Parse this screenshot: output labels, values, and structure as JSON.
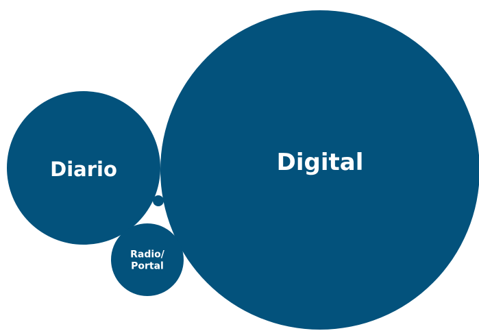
{
  "chart_data": {
    "type": "bubble",
    "color": "#03527c",
    "label_color": "#ffffff",
    "background": "#ffffff",
    "grid": false,
    "legend": "none",
    "bubbles": [
      {
        "label": "Digital",
        "lines": [
          "Digital"
        ]
      },
      {
        "label": "Diario",
        "lines": [
          "Diario"
        ]
      },
      {
        "label": "Radio/Portal",
        "lines": [
          "Radio/",
          "Portal"
        ]
      },
      {
        "label": "",
        "lines": []
      }
    ]
  }
}
